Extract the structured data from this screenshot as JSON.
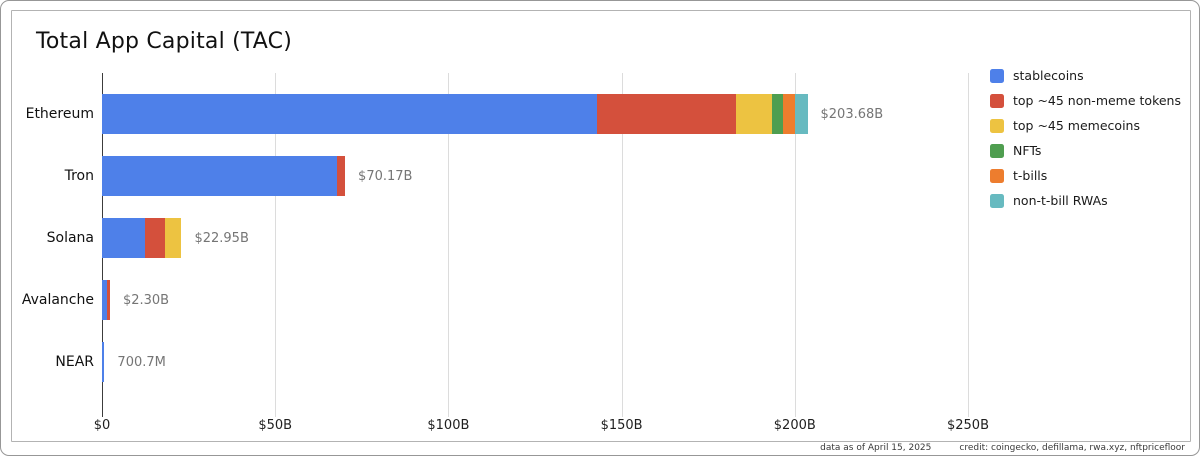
{
  "footer": {
    "data_as_of": "data as of April 15, 2025",
    "credit": "credit: coingecko, defillama, rwa.xyz, nftpricefloor"
  },
  "chart_data": {
    "type": "bar",
    "orientation": "horizontal",
    "stacked": true,
    "title": "Total App Capital (TAC)",
    "categories": [
      "Ethereum",
      "Tron",
      "Solana",
      "Avalanche",
      "NEAR"
    ],
    "total_labels": [
      "$203.68B",
      "$70.17B",
      "$22.95B",
      "$2.30B",
      "700.7M"
    ],
    "totals_billions": [
      203.68,
      70.17,
      22.95,
      2.3,
      0.7007
    ],
    "series": [
      {
        "name": "stablecoins",
        "color": "#4e80e9",
        "values": [
          142.8,
          67.8,
          12.5,
          1.5,
          0.7007
        ]
      },
      {
        "name": "top ~45 non-meme tokens",
        "color": "#d4503c",
        "values": [
          40.1,
          2.37,
          5.8,
          0.8,
          0
        ]
      },
      {
        "name": "top ~45 memecoins",
        "color": "#edc341",
        "values": [
          10.4,
          0,
          4.65,
          0,
          0
        ]
      },
      {
        "name": "NFTs",
        "color": "#4f9e50",
        "values": [
          3.4,
          0,
          0,
          0,
          0
        ]
      },
      {
        "name": "t-bills",
        "color": "#ed7d2e",
        "values": [
          3.3,
          0,
          0,
          0,
          0
        ]
      },
      {
        "name": "non-t-bill RWAs",
        "color": "#67bac0",
        "values": [
          3.68,
          0,
          0,
          0,
          0
        ]
      }
    ],
    "x_ticks": [
      "$0",
      "$50B",
      "$100B",
      "$150B",
      "$200B",
      "$250B"
    ],
    "x_tick_values": [
      0,
      50,
      100,
      150,
      200,
      250
    ],
    "xlim": [
      0,
      250
    ],
    "legend_position": "right",
    "grid": "vertical-only",
    "axis_colors": {
      "gridline": "#dcdcdc",
      "zero_line": "#3c3c3c"
    }
  }
}
